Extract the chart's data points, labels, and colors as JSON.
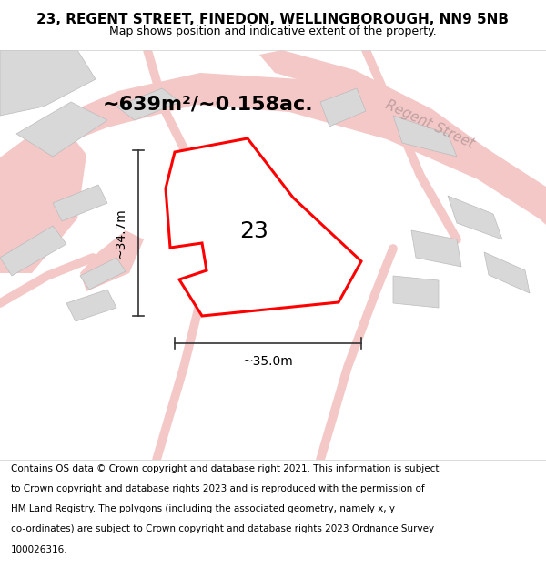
{
  "title_line1": "23, REGENT STREET, FINEDON, WELLINGBOROUGH, NN9 5NB",
  "title_line2": "Map shows position and indicative extent of the property.",
  "area_text": "~639m²/~0.158ac.",
  "number_label": "23",
  "width_label": "~35.0m",
  "height_label": "~34.7m",
  "footer_lines": [
    "Contains OS data © Crown copyright and database right 2021. This information is subject",
    "to Crown copyright and database rights 2023 and is reproduced with the permission of",
    "HM Land Registry. The polygons (including the associated geometry, namely x, y",
    "co-ordinates) are subject to Crown copyright and database rights 2023 Ordnance Survey",
    "100026316."
  ],
  "map_bg": "#eeecec",
  "road_color": "#f5c8c8",
  "building_color": "#d8d8d8",
  "building_edge": "#bbbbbb",
  "highlight_color": "#ff0000",
  "highlight_fill": "#ffffff",
  "road_label_color": "#c0a0a0",
  "dim_line_color": "#333333",
  "title_fontsize": 11,
  "subtitle_fontsize": 9,
  "footer_fontsize": 7.5,
  "area_fontsize": 16,
  "number_fontsize": 18,
  "dim_fontsize": 10,
  "road_label_fontsize": 11
}
